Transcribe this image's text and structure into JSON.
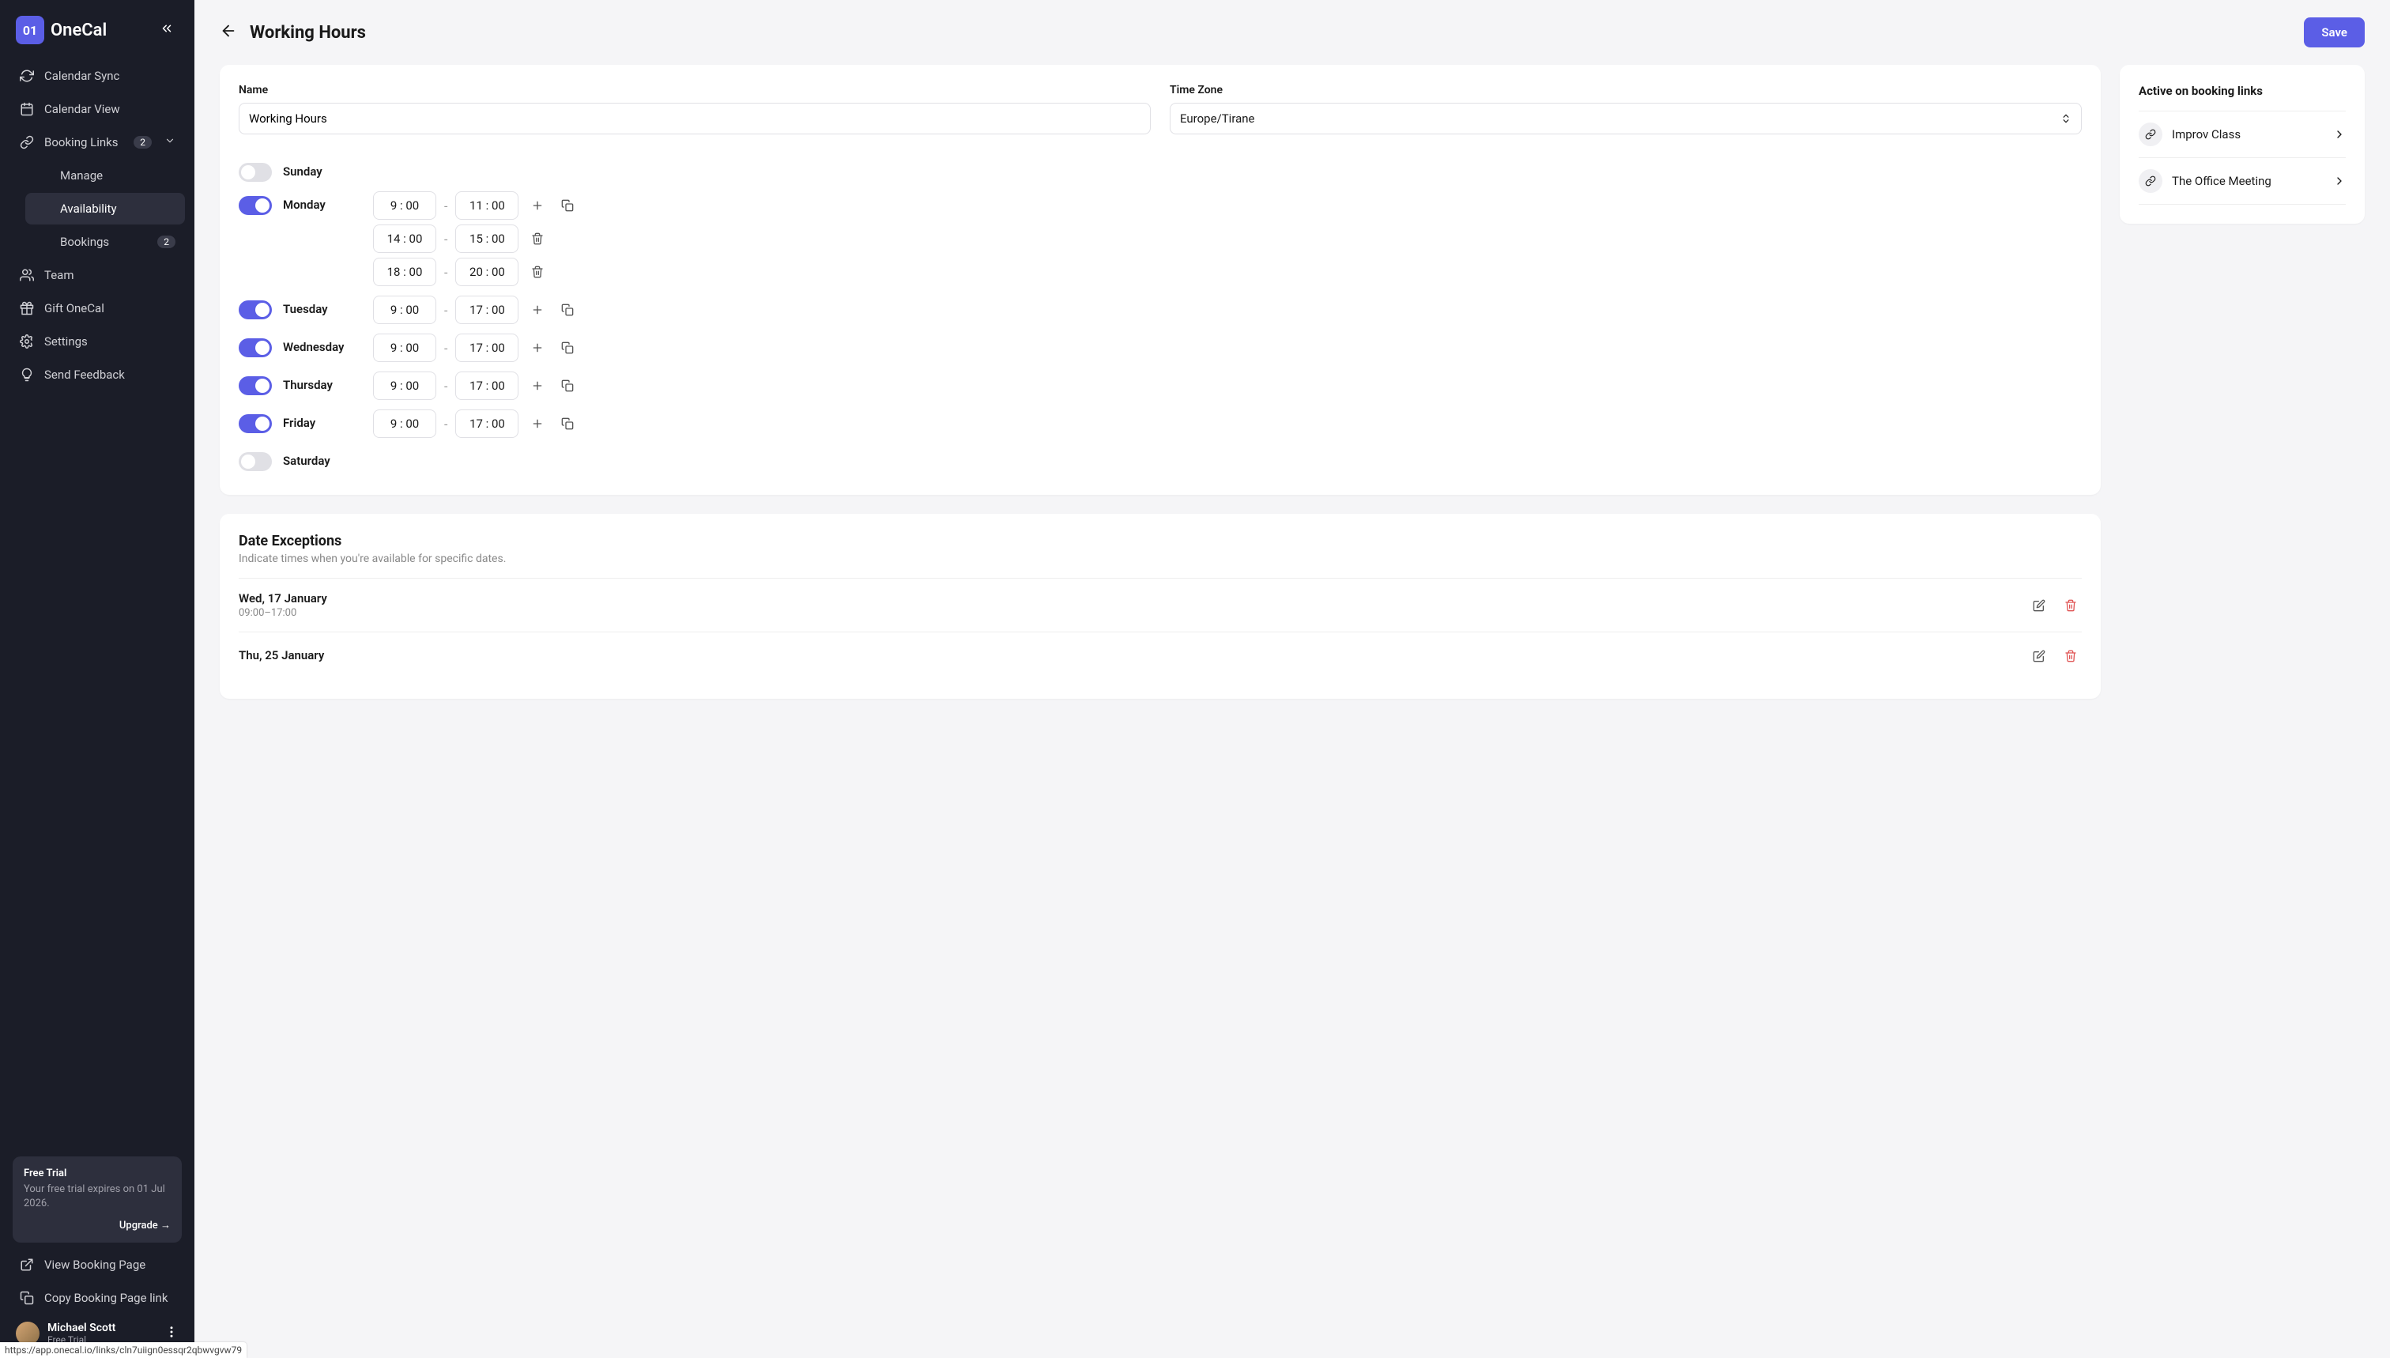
{
  "brand": {
    "badge": "01",
    "name": "OneCal"
  },
  "sidebar": {
    "items": [
      {
        "label": "Calendar Sync",
        "icon": "sync"
      },
      {
        "label": "Calendar View",
        "icon": "calendar"
      },
      {
        "label": "Booking Links",
        "icon": "link",
        "badge": "2",
        "expandable": true
      }
    ],
    "sub_items": [
      {
        "label": "Manage"
      },
      {
        "label": "Availability",
        "active": true
      },
      {
        "label": "Bookings",
        "badge": "2"
      }
    ],
    "items2": [
      {
        "label": "Team",
        "icon": "team"
      },
      {
        "label": "Gift OneCal",
        "icon": "gift"
      },
      {
        "label": "Settings",
        "icon": "gear"
      },
      {
        "label": "Send Feedback",
        "icon": "bulb"
      }
    ],
    "bottom_items": [
      {
        "label": "View Booking Page",
        "icon": "external"
      },
      {
        "label": "Copy Booking Page link",
        "icon": "copy"
      }
    ]
  },
  "trial": {
    "title": "Free Trial",
    "desc": "Your free trial expires on 01 Jul 2026.",
    "upgrade": "Upgrade →"
  },
  "user": {
    "name": "Michael Scott",
    "plan": "Free Trial"
  },
  "header": {
    "title": "Working Hours",
    "save": "Save"
  },
  "form": {
    "name_label": "Name",
    "name_value": "Working Hours",
    "tz_label": "Time Zone",
    "tz_value": "Europe/Tirane"
  },
  "days": [
    {
      "name": "Sunday",
      "on": false,
      "slots": []
    },
    {
      "name": "Monday",
      "on": true,
      "slots": [
        {
          "from": "9 : 00",
          "to": "11 : 00",
          "actions": [
            "add",
            "copy"
          ]
        },
        {
          "from": "14 : 00",
          "to": "15 : 00",
          "actions": [
            "delete"
          ]
        },
        {
          "from": "18 : 00",
          "to": "20 : 00",
          "actions": [
            "delete"
          ]
        }
      ]
    },
    {
      "name": "Tuesday",
      "on": true,
      "slots": [
        {
          "from": "9 : 00",
          "to": "17 : 00",
          "actions": [
            "add",
            "copy"
          ]
        }
      ]
    },
    {
      "name": "Wednesday",
      "on": true,
      "slots": [
        {
          "from": "9 : 00",
          "to": "17 : 00",
          "actions": [
            "add",
            "copy"
          ]
        }
      ]
    },
    {
      "name": "Thursday",
      "on": true,
      "slots": [
        {
          "from": "9 : 00",
          "to": "17 : 00",
          "actions": [
            "add",
            "copy"
          ]
        }
      ]
    },
    {
      "name": "Friday",
      "on": true,
      "slots": [
        {
          "from": "9 : 00",
          "to": "17 : 00",
          "actions": [
            "add",
            "copy"
          ]
        }
      ]
    },
    {
      "name": "Saturday",
      "on": false,
      "slots": []
    }
  ],
  "exceptions": {
    "title": "Date Exceptions",
    "sub": "Indicate times when you're available for specific dates.",
    "items": [
      {
        "date": "Wed, 17 January",
        "time": "09:00–17:00"
      },
      {
        "date": "Thu, 25 January",
        "time": ""
      }
    ]
  },
  "active_links": {
    "title": "Active on booking links",
    "items": [
      {
        "label": "Improv Class"
      },
      {
        "label": "The Office Meeting"
      }
    ]
  },
  "url": "https://app.onecal.io/links/cln7uiign0essqr2qbwvgvw79",
  "colors": {
    "accent": "#5b5ee6",
    "sidebar_bg": "#1b1d28",
    "card_bg": "#ffffff",
    "page_bg": "#f5f5f7",
    "border": "#e0e0e5",
    "danger": "#e05555"
  }
}
